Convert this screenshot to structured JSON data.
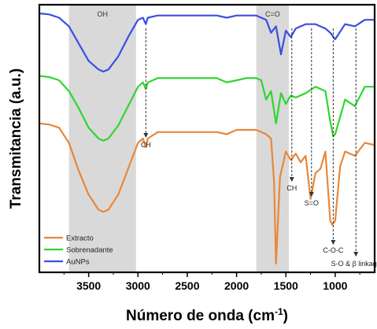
{
  "chart_data": {
    "type": "line",
    "title": "",
    "xlabel": "Número de onda (cm",
    "xlabel_superscript": "-1",
    "xlabel_suffix": ")",
    "ylabel": "Transmitancia (a.u.)",
    "xlim": [
      4000,
      600
    ],
    "x_reversed": true,
    "y_ticks_shown": false,
    "grid": false,
    "x_ticks": [
      3500,
      3000,
      2500,
      2000,
      1500,
      1000
    ],
    "x_tick_labels": [
      "3500",
      "3000",
      "2500",
      "2000",
      "1500",
      "1000"
    ],
    "legend": {
      "placement": "bottom-left",
      "entries": [
        {
          "label": "Extracto",
          "color": "#e8873a"
        },
        {
          "label": "Sobrenadante",
          "color": "#2fd52f"
        },
        {
          "label": "AuNPs",
          "color": "#3a4fe0"
        }
      ]
    },
    "shaded_regions": [
      {
        "label": "OH",
        "x_range": [
          3700,
          3020
        ],
        "color": "#d9d9d9"
      },
      {
        "label": "C=O",
        "x_range": [
          1800,
          1470
        ],
        "color": "#d9d9d9"
      }
    ],
    "annotations": [
      {
        "label": "CH",
        "x": 2920
      },
      {
        "label": "CH",
        "x": 1440
      },
      {
        "label": "S=O",
        "x": 1240
      },
      {
        "label": "C-O-C",
        "x": 1020
      },
      {
        "label": "S-O & β linkage",
        "x": 790
      }
    ],
    "series": [
      {
        "name": "AuNPs",
        "color": "#3a4fe0",
        "x": [
          4000,
          3900,
          3800,
          3700,
          3600,
          3500,
          3400,
          3350,
          3300,
          3200,
          3100,
          3000,
          2950,
          2920,
          2900,
          2800,
          2600,
          2400,
          2200,
          2100,
          2000,
          1900,
          1800,
          1700,
          1650,
          1600,
          1550,
          1500,
          1450,
          1400,
          1300,
          1200,
          1100,
          1050,
          1000,
          900,
          800,
          700,
          600
        ],
        "y": [
          8.6,
          8.55,
          8.4,
          8.0,
          7.2,
          6.4,
          6.0,
          5.9,
          6.0,
          6.6,
          7.5,
          8.3,
          8.4,
          8.1,
          8.4,
          8.5,
          8.5,
          8.5,
          8.5,
          8.4,
          8.5,
          8.5,
          8.5,
          8.3,
          7.7,
          8.0,
          6.7,
          7.8,
          7.5,
          7.9,
          8.1,
          8.1,
          7.9,
          7.7,
          7.4,
          8.1,
          8.0,
          8.3,
          8.3
        ]
      },
      {
        "name": "Sobrenadante",
        "color": "#2fd52f",
        "x": [
          4000,
          3900,
          3800,
          3700,
          3600,
          3500,
          3400,
          3350,
          3300,
          3200,
          3100,
          3000,
          2950,
          2920,
          2900,
          2800,
          2600,
          2400,
          2200,
          2100,
          2000,
          1900,
          1800,
          1750,
          1700,
          1650,
          1600,
          1550,
          1500,
          1450,
          1400,
          1300,
          1200,
          1100,
          1050,
          1020,
          1000,
          900,
          800,
          700,
          600
        ],
        "y": [
          5.7,
          5.65,
          5.5,
          5.0,
          4.2,
          3.3,
          2.8,
          2.7,
          2.8,
          3.4,
          4.3,
          5.2,
          5.4,
          5.1,
          5.4,
          5.6,
          5.6,
          5.6,
          5.6,
          5.4,
          5.5,
          5.6,
          5.6,
          5.5,
          4.6,
          5.0,
          3.5,
          4.9,
          4.4,
          4.8,
          4.7,
          4.9,
          5.2,
          5.0,
          3.6,
          2.9,
          3.0,
          4.6,
          4.3,
          5.2,
          5.2
        ]
      },
      {
        "name": "Extracto",
        "color": "#e8873a",
        "x": [
          4000,
          3900,
          3800,
          3700,
          3600,
          3500,
          3400,
          3350,
          3300,
          3200,
          3100,
          3000,
          2950,
          2920,
          2900,
          2800,
          2600,
          2400,
          2200,
          2100,
          2000,
          1900,
          1800,
          1750,
          1700,
          1650,
          1620,
          1600,
          1560,
          1500,
          1450,
          1400,
          1350,
          1300,
          1250,
          1200,
          1150,
          1100,
          1050,
          1030,
          1000,
          950,
          900,
          800,
          700,
          600
        ],
        "y": [
          3.5,
          3.45,
          3.3,
          2.6,
          1.3,
          0.2,
          -0.5,
          -0.6,
          -0.5,
          0.2,
          1.4,
          2.6,
          2.8,
          2.4,
          2.8,
          3.1,
          3.1,
          3.1,
          3.1,
          3.0,
          3.2,
          3.2,
          3.2,
          3.1,
          3.0,
          2.8,
          0.8,
          -3.0,
          1.0,
          2.2,
          1.8,
          2.1,
          1.7,
          2.0,
          0.0,
          1.2,
          1.4,
          2.2,
          -1.0,
          -1.2,
          -1.0,
          1.5,
          2.2,
          2.0,
          2.6,
          2.5
        ]
      }
    ]
  }
}
